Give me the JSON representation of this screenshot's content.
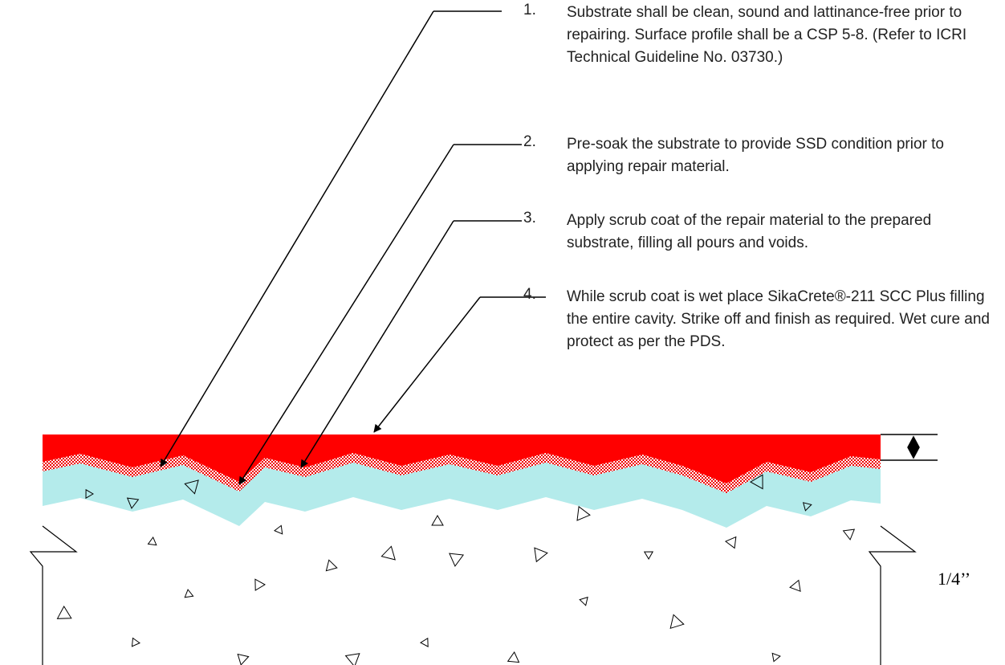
{
  "notes": [
    {
      "number": "1.",
      "text": "Substrate shall be clean, sound and lattinance-free prior to repairing. Surface profile shall be a CSP 5-8. (Refer to ICRI Technical Guideline No. 03730.)"
    },
    {
      "number": "2.",
      "text": "Pre-soak the substrate to provide SSD condition prior to applying repair material."
    },
    {
      "number": "3.",
      "text": "Apply scrub coat of the repair material to the prepared substrate, filling all pours and voids."
    },
    {
      "number": "4.",
      "text": "While scrub coat is wet place SikaCrete®-211 SCC Plus filling the entire cavity. Strike off and finish as required. Wet cure and protect as per the PDS."
    }
  ],
  "dimension_label": "1/4’’"
}
